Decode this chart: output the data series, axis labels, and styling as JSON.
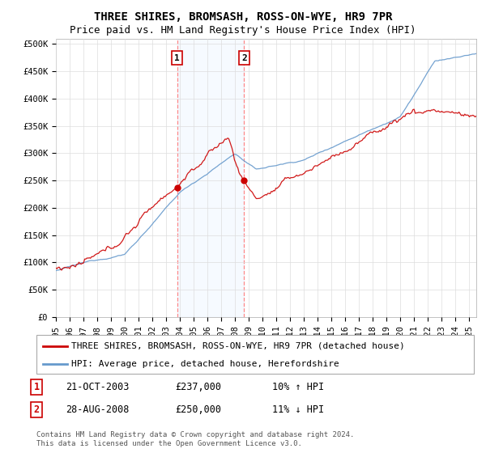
{
  "title": "THREE SHIRES, BROMSASH, ROSS-ON-WYE, HR9 7PR",
  "subtitle": "Price paid vs. HM Land Registry's House Price Index (HPI)",
  "ylabel_ticks": [
    "£0",
    "£50K",
    "£100K",
    "£150K",
    "£200K",
    "£250K",
    "£300K",
    "£350K",
    "£400K",
    "£450K",
    "£500K"
  ],
  "ytick_vals": [
    0,
    50000,
    100000,
    150000,
    200000,
    250000,
    300000,
    350000,
    400000,
    450000,
    500000
  ],
  "ylim": [
    0,
    510000
  ],
  "xlim_start": 1995.0,
  "xlim_end": 2025.5,
  "background_color": "#ffffff",
  "plot_bg_color": "#ffffff",
  "grid_color": "#dddddd",
  "line1_color": "#cc0000",
  "line2_color": "#6699cc",
  "vline_color": "#ff8888",
  "span_color": "#ddeeff",
  "marker_dot_color": "#cc0000",
  "marker1_x": 2003.8,
  "marker1_y": 237000,
  "marker2_x": 2008.65,
  "marker2_y": 250000,
  "annotation1_label": "1",
  "annotation2_label": "2",
  "legend_label1": "THREE SHIRES, BROMSASH, ROSS-ON-WYE, HR9 7PR (detached house)",
  "legend_label2": "HPI: Average price, detached house, Herefordshire",
  "table_row1": [
    "1",
    "21-OCT-2003",
    "£237,000",
    "10% ↑ HPI"
  ],
  "table_row2": [
    "2",
    "28-AUG-2008",
    "£250,000",
    "11% ↓ HPI"
  ],
  "footer_text": "Contains HM Land Registry data © Crown copyright and database right 2024.\nThis data is licensed under the Open Government Licence v3.0.",
  "title_fontsize": 10,
  "subtitle_fontsize": 9,
  "tick_fontsize": 7.5,
  "legend_fontsize": 8,
  "table_fontsize": 8.5,
  "footer_fontsize": 6.5
}
